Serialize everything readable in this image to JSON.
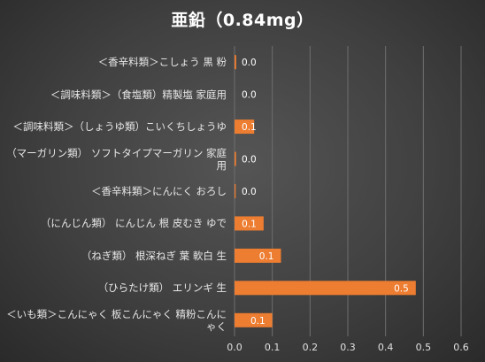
{
  "chart_data": {
    "type": "bar",
    "orientation": "horizontal",
    "title": "亜鉛（0.84mg）",
    "categories": [
      "＜香辛料類＞こしょう 黒 粉",
      "＜調味料類＞（食塩類）精製塩 家庭用",
      "＜調味料類＞（しょうゆ類）こいくちしょうゆ",
      "（マーガリン類） ソフトタイプマーガリン 家庭用",
      "＜香辛料類＞にんにく おろし",
      "（にんじん類） にんじん 根 皮むき ゆで",
      "（ねぎ類） 根深ねぎ 葉 軟白 生",
      "（ひらたけ類） エリンギ 生",
      "＜いも類＞こんにゃく 板こんにゃく 精粉こんにゃく"
    ],
    "values": [
      0.0044,
      0.0,
      0.052,
      0.004,
      0.003,
      0.077,
      0.123,
      0.48,
      0.1
    ],
    "data_labels": [
      "0.0",
      "0.0",
      "0.1",
      "0.0",
      "0.0",
      "0.1",
      "0.1",
      "0.5",
      "0.1"
    ],
    "xlim": [
      0,
      0.6
    ],
    "xticks": [
      "0.0",
      "0.1",
      "0.2",
      "0.3",
      "0.4",
      "0.5",
      "0.6"
    ],
    "grid": true,
    "bar_color": "#ed7d31",
    "label_color": "#ffffff",
    "gridline_color": "#6e6e6e"
  }
}
